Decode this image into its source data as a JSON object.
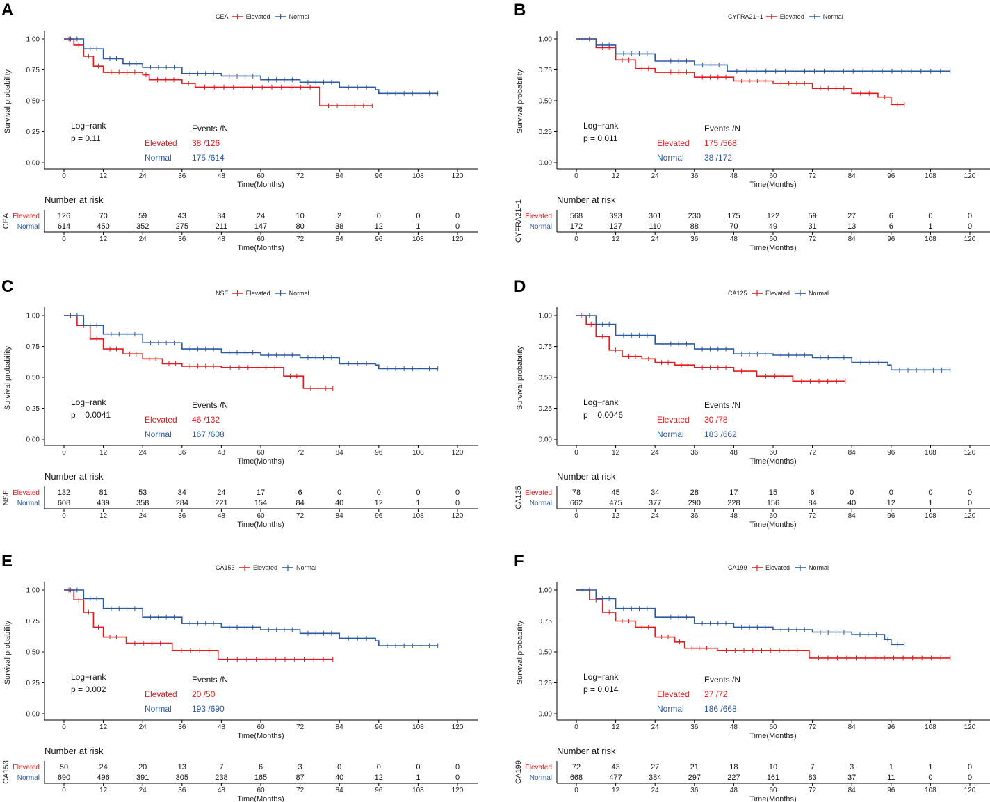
{
  "axis_labels": {
    "y_label": "Survival probability",
    "x_label": "Time(Months)",
    "risk_title": "Number at risk",
    "logrank_label": "Log−rank",
    "events_header": "Events /N",
    "group_elevated": "Elevated",
    "group_normal": "Normal"
  },
  "colors": {
    "elevated": "#e41a1c",
    "normal": "#2c5aa0"
  },
  "chart_data": [
    {
      "panel_label": "A",
      "type": "line",
      "marker": "CEA",
      "p_text": "p = 0.11",
      "events": {
        "elevated": "38 /126",
        "normal": "175 /614"
      },
      "x_ticks": [
        "0",
        "12",
        "24",
        "36",
        "48",
        "60",
        "72",
        "84",
        "96",
        "108",
        "120"
      ],
      "y_ticks": [
        "0.00",
        "0.25",
        "0.50",
        "0.75",
        "1.00"
      ],
      "xlim": [
        0,
        120
      ],
      "ylim": [
        0,
        1
      ],
      "risk": {
        "elevated": [
          "126",
          "70",
          "59",
          "43",
          "34",
          "24",
          "10",
          "2",
          "0",
          "0",
          "0"
        ],
        "normal": [
          "614",
          "450",
          "352",
          "275",
          "211",
          "147",
          "80",
          "38",
          "12",
          "1",
          "0"
        ]
      },
      "series": [
        {
          "name": "Elevated",
          "points": [
            [
              0,
              1
            ],
            [
              3,
              0.95
            ],
            [
              6,
              0.86
            ],
            [
              9,
              0.78
            ],
            [
              12,
              0.73
            ],
            [
              24,
              0.71
            ],
            [
              26,
              0.67
            ],
            [
              36,
              0.64
            ],
            [
              40,
              0.61
            ],
            [
              78,
              0.61
            ],
            [
              78,
              0.46
            ],
            [
              94,
              0.46
            ]
          ]
        },
        {
          "name": "Normal",
          "points": [
            [
              0,
              1
            ],
            [
              6,
              0.92
            ],
            [
              12,
              0.84
            ],
            [
              18,
              0.8
            ],
            [
              24,
              0.77
            ],
            [
              36,
              0.72
            ],
            [
              48,
              0.7
            ],
            [
              60,
              0.67
            ],
            [
              72,
              0.65
            ],
            [
              84,
              0.61
            ],
            [
              95,
              0.59
            ],
            [
              96,
              0.56
            ],
            [
              114,
              0.56
            ]
          ]
        }
      ]
    },
    {
      "panel_label": "B",
      "type": "line",
      "marker": "CYFRA21−1",
      "p_text": "p = 0.011",
      "events": {
        "elevated": "175 /568",
        "normal": "38 /172"
      },
      "x_ticks": [
        "0",
        "12",
        "24",
        "36",
        "48",
        "60",
        "72",
        "84",
        "96",
        "108",
        "120"
      ],
      "y_ticks": [
        "0.00",
        "0.25",
        "0.50",
        "0.75",
        "1.00"
      ],
      "xlim": [
        0,
        120
      ],
      "ylim": [
        0,
        1
      ],
      "risk": {
        "elevated": [
          "568",
          "393",
          "301",
          "230",
          "175",
          "122",
          "59",
          "27",
          "6",
          "0",
          "0"
        ],
        "normal": [
          "172",
          "127",
          "110",
          "88",
          "70",
          "49",
          "31",
          "13",
          "6",
          "1",
          "0"
        ]
      },
      "series": [
        {
          "name": "Elevated",
          "points": [
            [
              0,
              1
            ],
            [
              6,
              0.93
            ],
            [
              12,
              0.83
            ],
            [
              18,
              0.76
            ],
            [
              24,
              0.73
            ],
            [
              36,
              0.69
            ],
            [
              48,
              0.66
            ],
            [
              60,
              0.64
            ],
            [
              72,
              0.6
            ],
            [
              84,
              0.56
            ],
            [
              92,
              0.53
            ],
            [
              96,
              0.47
            ],
            [
              100,
              0.47
            ]
          ]
        },
        {
          "name": "Normal",
          "points": [
            [
              0,
              1
            ],
            [
              6,
              0.95
            ],
            [
              12,
              0.88
            ],
            [
              24,
              0.82
            ],
            [
              36,
              0.79
            ],
            [
              46,
              0.74
            ],
            [
              114,
              0.74
            ]
          ]
        }
      ]
    },
    {
      "panel_label": "C",
      "type": "line",
      "marker": "NSE",
      "p_text": "p = 0.0041",
      "events": {
        "elevated": "46 /132",
        "normal": "167 /608"
      },
      "x_ticks": [
        "0",
        "12",
        "24",
        "36",
        "48",
        "60",
        "72",
        "84",
        "96",
        "108",
        "120"
      ],
      "y_ticks": [
        "0.00",
        "0.25",
        "0.50",
        "0.75",
        "1.00"
      ],
      "xlim": [
        0,
        120
      ],
      "ylim": [
        0,
        1
      ],
      "risk": {
        "elevated": [
          "132",
          "81",
          "53",
          "34",
          "24",
          "17",
          "6",
          "0",
          "0",
          "0",
          "0"
        ],
        "normal": [
          "608",
          "439",
          "358",
          "284",
          "221",
          "154",
          "84",
          "40",
          "12",
          "1",
          "0"
        ]
      },
      "series": [
        {
          "name": "Elevated",
          "points": [
            [
              0,
              1
            ],
            [
              4,
              0.92
            ],
            [
              8,
              0.81
            ],
            [
              12,
              0.73
            ],
            [
              18,
              0.69
            ],
            [
              24,
              0.65
            ],
            [
              30,
              0.61
            ],
            [
              36,
              0.59
            ],
            [
              48,
              0.58
            ],
            [
              67,
              0.58
            ],
            [
              67,
              0.51
            ],
            [
              73,
              0.51
            ],
            [
              73,
              0.41
            ],
            [
              82,
              0.41
            ]
          ]
        },
        {
          "name": "Normal",
          "points": [
            [
              0,
              1
            ],
            [
              6,
              0.92
            ],
            [
              12,
              0.85
            ],
            [
              24,
              0.78
            ],
            [
              36,
              0.73
            ],
            [
              48,
              0.7
            ],
            [
              60,
              0.68
            ],
            [
              72,
              0.66
            ],
            [
              84,
              0.61
            ],
            [
              95,
              0.6
            ],
            [
              96,
              0.57
            ],
            [
              114,
              0.57
            ]
          ]
        }
      ]
    },
    {
      "panel_label": "D",
      "type": "line",
      "marker": "CA125",
      "p_text": "p = 0.0046",
      "events": {
        "elevated": "30 /78",
        "normal": "183 /662"
      },
      "x_ticks": [
        "0",
        "12",
        "24",
        "36",
        "48",
        "60",
        "72",
        "84",
        "96",
        "108",
        "120"
      ],
      "y_ticks": [
        "0.00",
        "0.25",
        "0.50",
        "0.75",
        "1.00"
      ],
      "xlim": [
        0,
        120
      ],
      "ylim": [
        0,
        1
      ],
      "risk": {
        "elevated": [
          "78",
          "45",
          "34",
          "28",
          "17",
          "15",
          "6",
          "0",
          "0",
          "0",
          "0"
        ],
        "normal": [
          "662",
          "475",
          "377",
          "290",
          "228",
          "156",
          "84",
          "40",
          "12",
          "1",
          "0"
        ]
      },
      "series": [
        {
          "name": "Elevated",
          "points": [
            [
              0,
              1
            ],
            [
              3,
              0.93
            ],
            [
              6,
              0.83
            ],
            [
              10,
              0.72
            ],
            [
              14,
              0.67
            ],
            [
              20,
              0.65
            ],
            [
              24,
              0.62
            ],
            [
              30,
              0.6
            ],
            [
              36,
              0.58
            ],
            [
              48,
              0.58
            ],
            [
              48,
              0.55
            ],
            [
              55,
              0.55
            ],
            [
              55,
              0.51
            ],
            [
              66,
              0.51
            ],
            [
              66,
              0.47
            ],
            [
              82,
              0.47
            ]
          ]
        },
        {
          "name": "Normal",
          "points": [
            [
              0,
              1
            ],
            [
              6,
              0.93
            ],
            [
              12,
              0.84
            ],
            [
              24,
              0.77
            ],
            [
              36,
              0.73
            ],
            [
              48,
              0.69
            ],
            [
              60,
              0.68
            ],
            [
              72,
              0.66
            ],
            [
              84,
              0.62
            ],
            [
              95,
              0.6
            ],
            [
              96,
              0.56
            ],
            [
              114,
              0.56
            ]
          ]
        }
      ]
    },
    {
      "panel_label": "E",
      "type": "line",
      "marker": "CA153",
      "p_text": "p = 0.002",
      "events": {
        "elevated": "20 /50",
        "normal": "193 /690"
      },
      "x_ticks": [
        "0",
        "12",
        "24",
        "36",
        "48",
        "60",
        "72",
        "84",
        "96",
        "108",
        "120"
      ],
      "y_ticks": [
        "0.00",
        "0.25",
        "0.50",
        "0.75",
        "1.00"
      ],
      "xlim": [
        0,
        120
      ],
      "ylim": [
        0,
        1
      ],
      "risk": {
        "elevated": [
          "50",
          "24",
          "20",
          "13",
          "7",
          "6",
          "3",
          "0",
          "0",
          "0",
          "0"
        ],
        "normal": [
          "690",
          "496",
          "391",
          "305",
          "238",
          "165",
          "87",
          "40",
          "12",
          "1",
          "0"
        ]
      },
      "series": [
        {
          "name": "Elevated",
          "points": [
            [
              0,
              1
            ],
            [
              3,
              0.92
            ],
            [
              6,
              0.82
            ],
            [
              9,
              0.7
            ],
            [
              12,
              0.62
            ],
            [
              18,
              0.62
            ],
            [
              19,
              0.57
            ],
            [
              32,
              0.57
            ],
            [
              33,
              0.51
            ],
            [
              47,
              0.51
            ],
            [
              47,
              0.44
            ],
            [
              82,
              0.44
            ]
          ]
        },
        {
          "name": "Normal",
          "points": [
            [
              0,
              1
            ],
            [
              6,
              0.93
            ],
            [
              12,
              0.85
            ],
            [
              24,
              0.78
            ],
            [
              36,
              0.73
            ],
            [
              48,
              0.7
            ],
            [
              60,
              0.68
            ],
            [
              72,
              0.65
            ],
            [
              84,
              0.61
            ],
            [
              95,
              0.59
            ],
            [
              96,
              0.55
            ],
            [
              114,
              0.55
            ]
          ]
        }
      ]
    },
    {
      "panel_label": "F",
      "type": "line",
      "marker": "CA199",
      "p_text": "p = 0.014",
      "events": {
        "elevated": "27 /72",
        "normal": "186 /668"
      },
      "x_ticks": [
        "0",
        "12",
        "24",
        "36",
        "48",
        "60",
        "72",
        "84",
        "96",
        "108",
        "120"
      ],
      "y_ticks": [
        "0.00",
        "0.25",
        "0.50",
        "0.75",
        "1.00"
      ],
      "xlim": [
        0,
        120
      ],
      "ylim": [
        0,
        1
      ],
      "risk": {
        "elevated": [
          "72",
          "43",
          "27",
          "21",
          "18",
          "10",
          "7",
          "3",
          "1",
          "1",
          "0"
        ],
        "normal": [
          "668",
          "477",
          "384",
          "297",
          "227",
          "161",
          "83",
          "37",
          "11",
          "0",
          "0"
        ]
      },
      "series": [
        {
          "name": "Elevated",
          "points": [
            [
              0,
              1
            ],
            [
              4,
              0.92
            ],
            [
              8,
              0.82
            ],
            [
              12,
              0.75
            ],
            [
              18,
              0.7
            ],
            [
              24,
              0.62
            ],
            [
              30,
              0.58
            ],
            [
              33,
              0.53
            ],
            [
              42,
              0.53
            ],
            [
              43,
              0.51
            ],
            [
              70,
              0.51
            ],
            [
              71,
              0.45
            ],
            [
              114,
              0.45
            ]
          ]
        },
        {
          "name": "Normal",
          "points": [
            [
              0,
              1
            ],
            [
              6,
              0.93
            ],
            [
              12,
              0.85
            ],
            [
              24,
              0.78
            ],
            [
              36,
              0.73
            ],
            [
              48,
              0.7
            ],
            [
              60,
              0.68
            ],
            [
              72,
              0.66
            ],
            [
              84,
              0.64
            ],
            [
              94,
              0.6
            ],
            [
              96,
              0.56
            ],
            [
              100,
              0.56
            ]
          ]
        }
      ]
    }
  ]
}
